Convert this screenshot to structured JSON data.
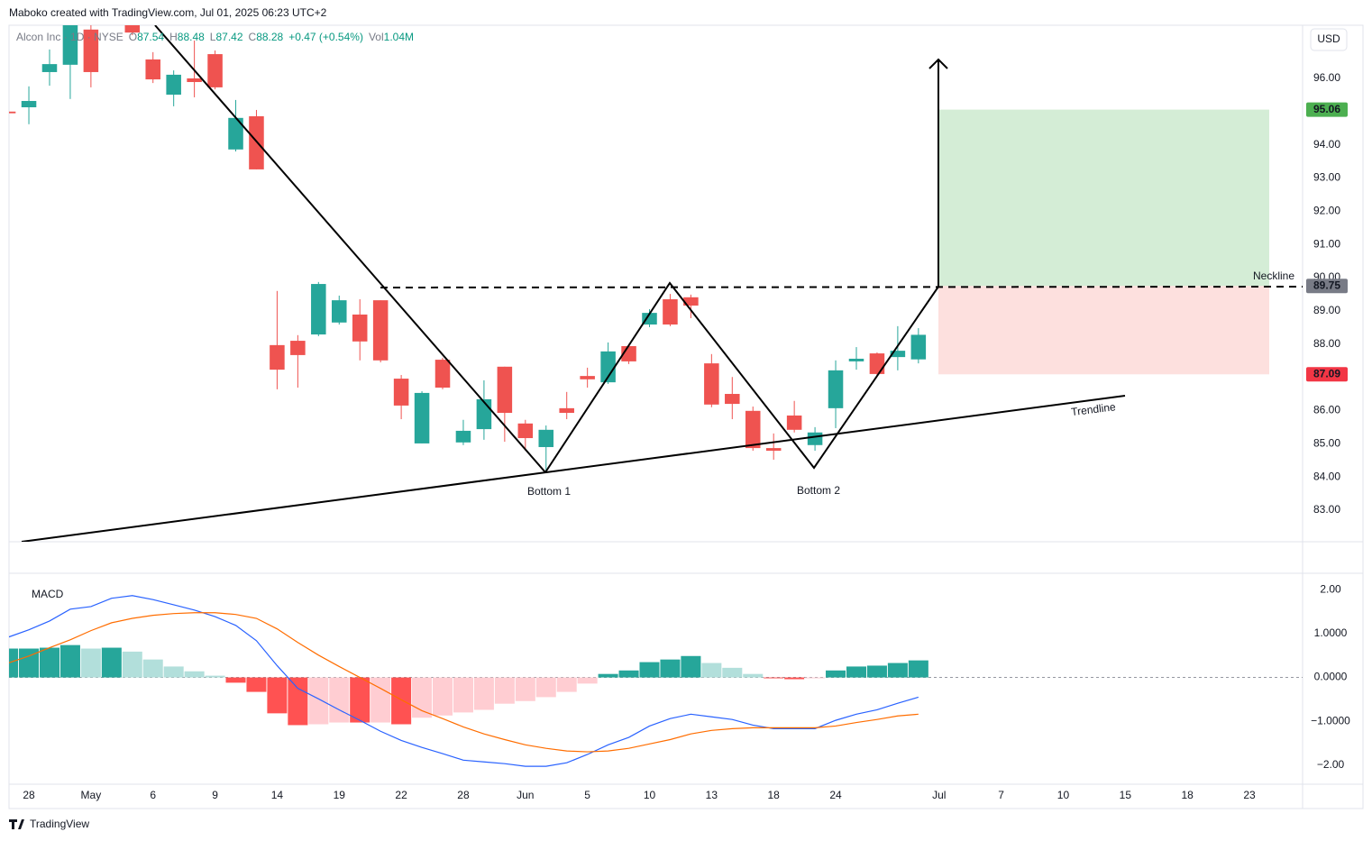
{
  "header": "Maboko created with TradingView.com, Jul 01, 2025 06:23 UTC+2",
  "footer": "TradingView",
  "chart_data": [
    {
      "type": "candlestick",
      "title": "Alcon Inc · 1D · NYSE",
      "legend": [
        {
          "key": "O",
          "value": "87.54"
        },
        {
          "key": "H",
          "value": "88.48"
        },
        {
          "key": "L",
          "value": "87.42"
        },
        {
          "key": "C",
          "value": "88.28"
        },
        {
          "key": "",
          "value": "+0.47 (+0.54%)"
        },
        {
          "key": "Vol",
          "value": "1.04M"
        }
      ],
      "currency": "USD",
      "up_color": "#26a69a",
      "down_color": "#ef5350",
      "x": [
        -1,
        0,
        1,
        2,
        3,
        5,
        6,
        7,
        8,
        9,
        10,
        11,
        12,
        13,
        14,
        15,
        16,
        17,
        18,
        19,
        20,
        21,
        22,
        23,
        24,
        25,
        26,
        27,
        28,
        29,
        30,
        31,
        32,
        33,
        34,
        35,
        36,
        37,
        38,
        39,
        40,
        41,
        42,
        43
      ],
      "open": [
        95.0,
        95.13,
        96.19,
        96.41,
        97.47,
        97.6,
        96.57,
        95.51,
        96.0,
        96.73,
        93.86,
        94.86,
        87.97,
        88.1,
        88.29,
        88.65,
        88.89,
        89.32,
        86.96,
        85.01,
        87.53,
        85.04,
        85.44,
        87.32,
        85.61,
        84.9,
        86.07,
        87.04,
        86.85,
        87.94,
        88.59,
        89.35,
        89.41,
        87.42,
        86.5,
        85.99,
        84.87,
        85.85,
        84.96,
        86.07,
        87.48,
        87.72,
        87.61,
        87.54
      ],
      "high": [
        95.02,
        95.76,
        96.87,
        97.8,
        97.7,
        97.8,
        96.79,
        96.24,
        97.14,
        96.84,
        95.35,
        95.05,
        89.6,
        88.27,
        89.87,
        89.46,
        89.35,
        89.32,
        87.07,
        86.58,
        87.59,
        85.72,
        86.91,
        87.32,
        85.72,
        85.55,
        86.56,
        87.29,
        88.05,
        88.0,
        89.05,
        89.51,
        89.49,
        87.7,
        87.01,
        86.12,
        85.31,
        86.29,
        85.5,
        87.51,
        87.91,
        87.75,
        88.54,
        88.48
      ],
      "low": [
        94.93,
        94.62,
        95.78,
        95.38,
        95.73,
        97.3,
        95.86,
        95.16,
        95.43,
        95.67,
        93.8,
        93.26,
        86.64,
        86.69,
        88.24,
        88.59,
        87.51,
        87.45,
        85.74,
        85.01,
        86.64,
        84.96,
        85.12,
        85.06,
        84.79,
        84.17,
        85.74,
        86.69,
        86.8,
        87.4,
        88.51,
        88.54,
        88.78,
        86.1,
        85.74,
        84.79,
        84.52,
        85.34,
        84.79,
        85.47,
        87.23,
        87.04,
        87.21,
        87.42
      ],
      "close": [
        94.95,
        95.32,
        96.43,
        97.6,
        96.19,
        97.38,
        95.97,
        96.11,
        95.89,
        95.73,
        94.81,
        93.26,
        87.23,
        87.67,
        89.81,
        89.32,
        88.08,
        87.51,
        86.15,
        86.53,
        86.69,
        85.39,
        86.34,
        85.93,
        85.17,
        85.42,
        85.93,
        86.94,
        87.78,
        87.48,
        88.94,
        88.59,
        89.16,
        86.18,
        86.2,
        84.87,
        84.79,
        85.42,
        85.34,
        87.21,
        87.56,
        87.1,
        87.8,
        88.28
      ],
      "xlim": [
        -0.96,
        61.57
      ],
      "ylim": [
        82.05,
        97.6
      ],
      "yticks": [
        {
          "value": 83,
          "label": "83.00"
        },
        {
          "value": 84,
          "label": "84.00"
        },
        {
          "value": 85,
          "label": "85.00"
        },
        {
          "value": 86,
          "label": "86.00"
        },
        {
          "value": 88,
          "label": "88.00"
        },
        {
          "value": 89,
          "label": "89.00"
        },
        {
          "value": 90,
          "label": "90.00"
        },
        {
          "value": 91,
          "label": "91.00"
        },
        {
          "value": 92,
          "label": "92.00"
        },
        {
          "value": 93,
          "label": "93.00"
        },
        {
          "value": 94,
          "label": "94.00"
        },
        {
          "value": 96,
          "label": "96.00"
        }
      ],
      "xticks": [
        {
          "value": 0,
          "label": "28"
        },
        {
          "value": 3,
          "label": "May"
        },
        {
          "value": 6,
          "label": "6"
        },
        {
          "value": 9,
          "label": "9"
        },
        {
          "value": 12,
          "label": "14"
        },
        {
          "value": 15,
          "label": "19"
        },
        {
          "value": 18,
          "label": "22"
        },
        {
          "value": 21,
          "label": "28"
        },
        {
          "value": 24,
          "label": "Jun"
        },
        {
          "value": 27,
          "label": "5"
        },
        {
          "value": 30,
          "label": "10"
        },
        {
          "value": 33,
          "label": "13"
        },
        {
          "value": 36,
          "label": "18"
        },
        {
          "value": 39,
          "label": "24"
        },
        {
          "value": 44,
          "label": "Jul"
        },
        {
          "value": 47,
          "label": "7"
        },
        {
          "value": 50,
          "label": "10"
        },
        {
          "value": 53,
          "label": "15"
        },
        {
          "value": 56,
          "label": "18"
        },
        {
          "value": 59,
          "label": "23"
        }
      ],
      "levels": [
        {
          "value": 95.06,
          "color": "#4caf50"
        },
        {
          "value": 89.75,
          "color": "#787b86"
        },
        {
          "value": 87.09,
          "color": "#f23645"
        }
      ],
      "annotations": [
        "Bottom 1",
        "Bottom 2",
        "Neckline",
        "Trendline"
      ]
    },
    {
      "type": "macd",
      "title": "MACD",
      "x": [
        -1,
        0,
        1,
        2,
        3,
        4,
        5,
        6,
        7,
        8,
        9,
        10,
        11,
        12,
        13,
        14,
        15,
        16,
        17,
        18,
        19,
        20,
        21,
        22,
        23,
        24,
        25,
        26,
        27,
        28,
        29,
        30,
        31,
        32,
        33,
        34,
        35,
        36,
        37,
        38,
        39,
        40,
        41,
        42,
        43
      ],
      "histogram": [
        0.66,
        0.66,
        0.68,
        0.74,
        0.66,
        0.68,
        0.59,
        0.41,
        0.25,
        0.14,
        0.04,
        -0.12,
        -0.33,
        -0.82,
        -1.09,
        -1.07,
        -1.03,
        -1.03,
        -1.03,
        -1.07,
        -0.92,
        -0.87,
        -0.8,
        -0.74,
        -0.6,
        -0.54,
        -0.45,
        -0.33,
        -0.14,
        0.08,
        0.16,
        0.35,
        0.41,
        0.49,
        0.33,
        0.22,
        0.08,
        -0.02,
        -0.04,
        -0.02,
        0.16,
        0.25,
        0.27,
        0.33,
        0.39
      ],
      "histogram_colors": [
        "#26a69a",
        "#26a69a",
        "#26a69a",
        "#26a69a",
        "#b2dfdb",
        "#26a69a",
        "#b2dfdb",
        "#b2dfdb",
        "#b2dfdb",
        "#b2dfdb",
        "#b2dfdb",
        "#ff5252",
        "#ff5252",
        "#ff5252",
        "#ff5252",
        "#ffcdd2",
        "#ffcdd2",
        "#ff5252",
        "#ffcdd2",
        "#ff5252",
        "#ffcdd2",
        "#ffcdd2",
        "#ffcdd2",
        "#ffcdd2",
        "#ffcdd2",
        "#ffcdd2",
        "#ffcdd2",
        "#ffcdd2",
        "#ffcdd2",
        "#26a69a",
        "#26a69a",
        "#26a69a",
        "#26a69a",
        "#26a69a",
        "#b2dfdb",
        "#b2dfdb",
        "#b2dfdb",
        "#ff5252",
        "#ff5252",
        "#ffcdd2",
        "#26a69a",
        "#26a69a",
        "#26a69a",
        "#26a69a",
        "#26a69a"
      ],
      "series": [
        {
          "color": "#2962ff",
          "values": [
            0.92,
            1.09,
            1.29,
            1.56,
            1.62,
            1.81,
            1.87,
            1.78,
            1.66,
            1.54,
            1.39,
            1.19,
            0.84,
            0.27,
            -0.25,
            -0.49,
            -0.74,
            -0.98,
            -1.23,
            -1.44,
            -1.6,
            -1.74,
            -1.89,
            -1.93,
            -1.97,
            -2.03,
            -2.03,
            -1.95,
            -1.76,
            -1.54,
            -1.37,
            -1.11,
            -0.94,
            -0.84,
            -0.9,
            -0.96,
            -1.09,
            -1.17,
            -1.17,
            -1.17,
            -0.98,
            -0.84,
            -0.74,
            -0.59,
            -0.45
          ]
        },
        {
          "color": "#ff6d00",
          "values": [
            0.33,
            0.49,
            0.68,
            0.86,
            1.07,
            1.25,
            1.35,
            1.42,
            1.46,
            1.48,
            1.48,
            1.44,
            1.35,
            1.11,
            0.8,
            0.51,
            0.25,
            0.0,
            -0.25,
            -0.51,
            -0.76,
            -0.94,
            -1.13,
            -1.29,
            -1.42,
            -1.54,
            -1.62,
            -1.68,
            -1.7,
            -1.68,
            -1.62,
            -1.52,
            -1.42,
            -1.29,
            -1.21,
            -1.17,
            -1.15,
            -1.15,
            -1.15,
            -1.15,
            -1.11,
            -1.03,
            -0.96,
            -0.88,
            -0.84
          ]
        }
      ],
      "ylim": [
        -2.44,
        2.36
      ],
      "yticks": [
        {
          "value": 2,
          "label": "2.00"
        },
        {
          "value": 1,
          "label": "1.0000"
        },
        {
          "value": 0,
          "label": "0.0000"
        },
        {
          "value": -1,
          "label": "−1.0000"
        },
        {
          "value": -2,
          "label": "−2.00"
        }
      ]
    }
  ]
}
